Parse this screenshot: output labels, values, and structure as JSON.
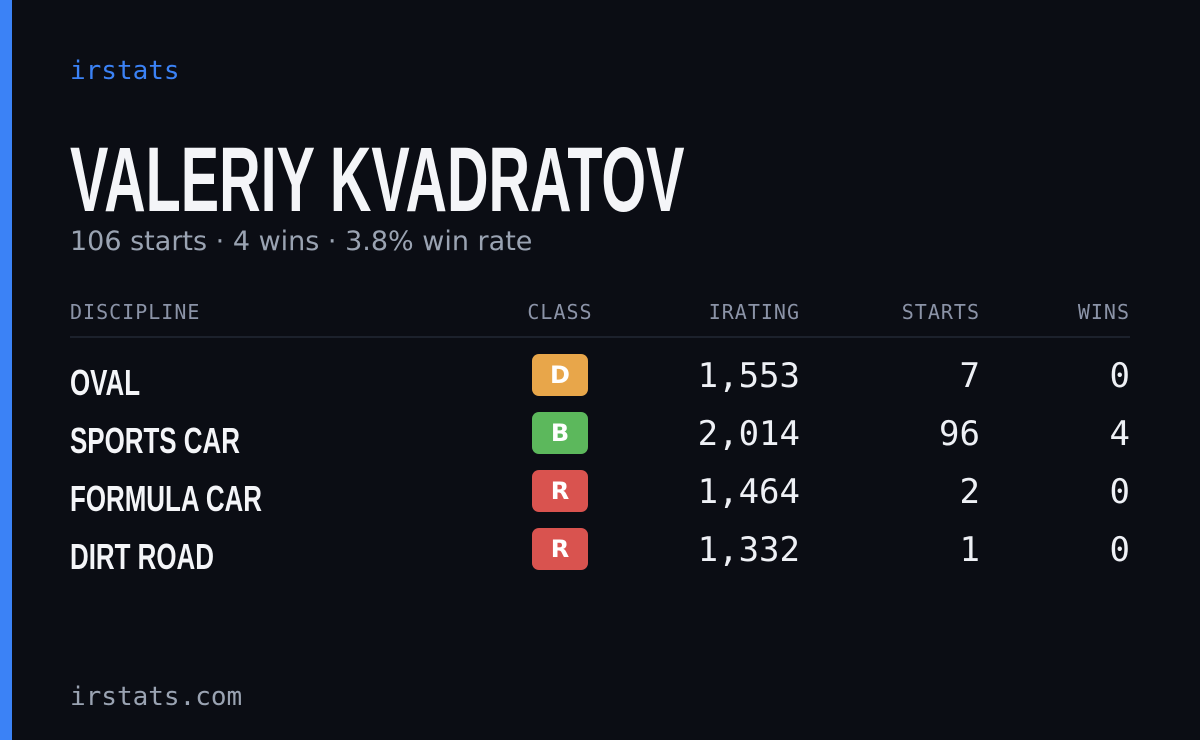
{
  "brand": "irstats",
  "driver": {
    "name": "VALERIY KVADRATOV",
    "summary": "106 starts · 4 wins · 3.8% win rate"
  },
  "table": {
    "headers": [
      "DISCIPLINE",
      "CLASS",
      "IRATING",
      "STARTS",
      "WINS"
    ],
    "rows": [
      [
        "OVAL",
        "D",
        "1,553",
        "7",
        "0"
      ],
      [
        "SPORTS CAR",
        "B",
        "2,014",
        "96",
        "4"
      ],
      [
        "FORMULA CAR",
        "R",
        "1,464",
        "2",
        "0"
      ],
      [
        "DIRT ROAD",
        "R",
        "1,332",
        "1",
        "0"
      ]
    ]
  },
  "footer": "irstats.com"
}
